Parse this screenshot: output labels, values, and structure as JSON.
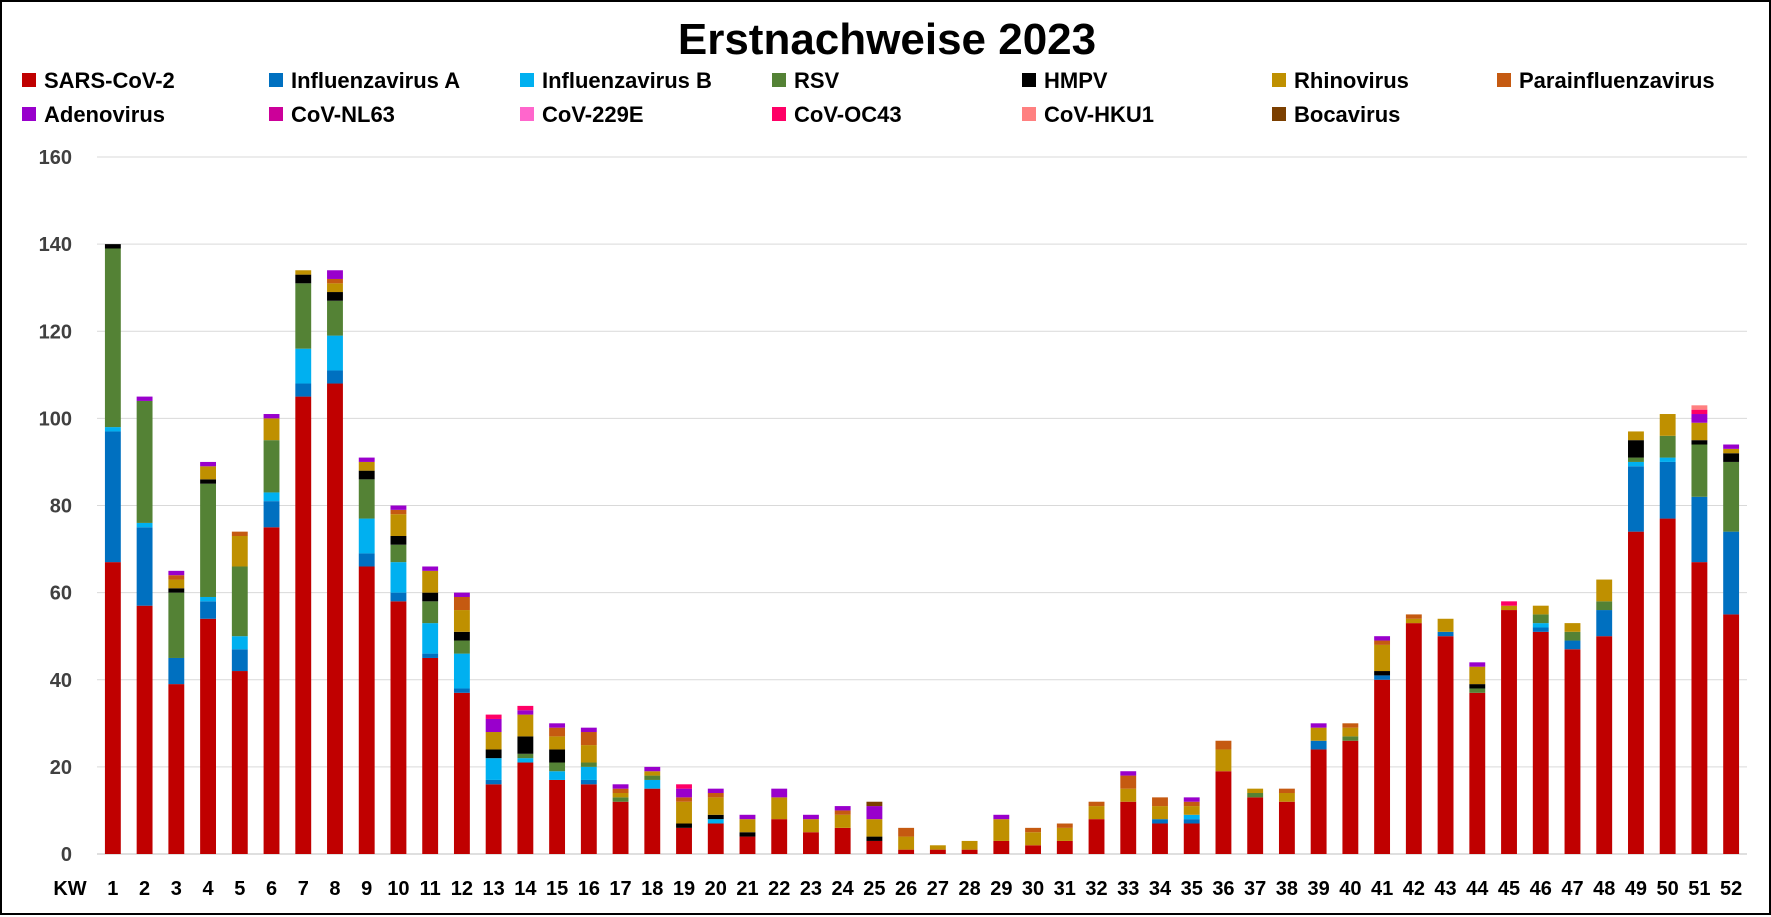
{
  "chart_data": {
    "type": "bar",
    "stacked": true,
    "title": "Erstnachweise 2023",
    "xlabel": "KW",
    "ylabel": "",
    "ylim": [
      0,
      160
    ],
    "yticks": [
      0,
      20,
      40,
      60,
      80,
      100,
      120,
      140,
      160
    ],
    "grid": true,
    "legend_position": "top",
    "categories": [
      "1",
      "2",
      "3",
      "4",
      "5",
      "6",
      "7",
      "8",
      "9",
      "10",
      "11",
      "12",
      "13",
      "14",
      "15",
      "16",
      "17",
      "18",
      "19",
      "20",
      "21",
      "22",
      "23",
      "24",
      "25",
      "26",
      "27",
      "28",
      "29",
      "30",
      "31",
      "32",
      "33",
      "34",
      "35",
      "36",
      "37",
      "38",
      "39",
      "40",
      "41",
      "42",
      "43",
      "44",
      "45",
      "46",
      "47",
      "48",
      "49",
      "50",
      "51",
      "52"
    ],
    "series": [
      {
        "name": "SARS-CoV-2",
        "color": "#C00000",
        "values": [
          67,
          57,
          39,
          54,
          42,
          75,
          105,
          108,
          66,
          58,
          45,
          37,
          16,
          21,
          17,
          16,
          12,
          15,
          6,
          7,
          4,
          8,
          5,
          6,
          3,
          1,
          1,
          1,
          3,
          2,
          3,
          8,
          12,
          7,
          7,
          19,
          13,
          12,
          24,
          26,
          40,
          53,
          50,
          37,
          56,
          51,
          47,
          50,
          74,
          77,
          67,
          55
        ]
      },
      {
        "name": "Influenzavirus A",
        "color": "#0070C0",
        "values": [
          30,
          18,
          6,
          4,
          5,
          6,
          3,
          3,
          3,
          2,
          1,
          1,
          1,
          0,
          0,
          1,
          0,
          0,
          0,
          0,
          0,
          0,
          0,
          0,
          0,
          0,
          0,
          0,
          0,
          0,
          0,
          0,
          0,
          1,
          1,
          0,
          0,
          0,
          2,
          0,
          1,
          0,
          1,
          0,
          0,
          1,
          2,
          6,
          15,
          13,
          15,
          19
        ]
      },
      {
        "name": "Influenzavirus B",
        "color": "#00B0F0",
        "values": [
          1,
          1,
          0,
          1,
          3,
          2,
          8,
          8,
          8,
          7,
          7,
          8,
          5,
          1,
          2,
          3,
          0,
          2,
          0,
          1,
          0,
          0,
          0,
          0,
          0,
          0,
          0,
          0,
          0,
          0,
          0,
          0,
          0,
          0,
          1,
          0,
          0,
          0,
          0,
          0,
          0,
          0,
          0,
          0,
          0,
          1,
          0,
          0,
          1,
          1,
          0,
          0
        ]
      },
      {
        "name": "RSV",
        "color": "#548235",
        "values": [
          41,
          28,
          15,
          26,
          16,
          12,
          15,
          8,
          9,
          4,
          5,
          3,
          0,
          1,
          2,
          1,
          1,
          1,
          0,
          0,
          0,
          0,
          0,
          0,
          0,
          0,
          0,
          0,
          0,
          0,
          0,
          0,
          0,
          0,
          0,
          0,
          1,
          0,
          0,
          1,
          0,
          0,
          0,
          1,
          0,
          2,
          2,
          2,
          1,
          5,
          12,
          16
        ]
      },
      {
        "name": "HMPV",
        "color": "#000000",
        "values": [
          1,
          0,
          1,
          1,
          0,
          0,
          2,
          2,
          2,
          2,
          2,
          2,
          2,
          4,
          3,
          0,
          0,
          0,
          1,
          1,
          1,
          0,
          0,
          0,
          1,
          0,
          0,
          0,
          0,
          0,
          0,
          0,
          0,
          0,
          0,
          0,
          0,
          0,
          0,
          0,
          1,
          0,
          0,
          1,
          0,
          0,
          0,
          0,
          4,
          0,
          1,
          2
        ]
      },
      {
        "name": "Rhinovirus",
        "color": "#BF9000",
        "values": [
          0,
          0,
          2,
          3,
          7,
          5,
          1,
          2,
          2,
          5,
          5,
          5,
          4,
          5,
          3,
          4,
          1,
          1,
          5,
          4,
          3,
          5,
          3,
          3,
          4,
          3,
          1,
          2,
          5,
          3,
          3,
          3,
          3,
          3,
          2,
          5,
          1,
          2,
          3,
          2,
          6,
          1,
          3,
          4,
          1,
          2,
          2,
          5,
          2,
          5,
          4,
          1
        ]
      },
      {
        "name": "Parainfluenzavirus",
        "color": "#C55A11",
        "values": [
          0,
          0,
          1,
          0,
          1,
          0,
          0,
          1,
          0,
          1,
          0,
          3,
          0,
          0,
          2,
          3,
          1,
          0,
          1,
          1,
          0,
          0,
          0,
          1,
          0,
          2,
          0,
          0,
          0,
          1,
          1,
          1,
          3,
          2,
          1,
          2,
          0,
          1,
          0,
          1,
          1,
          1,
          0,
          0,
          0,
          0,
          0,
          0,
          0,
          0,
          0,
          0
        ]
      },
      {
        "name": "Adenovirus",
        "color": "#9900CC",
        "values": [
          0,
          1,
          1,
          1,
          0,
          1,
          0,
          2,
          1,
          1,
          1,
          1,
          3,
          1,
          1,
          1,
          1,
          1,
          2,
          1,
          1,
          2,
          1,
          1,
          3,
          0,
          0,
          0,
          1,
          0,
          0,
          0,
          1,
          0,
          1,
          0,
          0,
          0,
          1,
          0,
          1,
          0,
          0,
          1,
          0,
          0,
          0,
          0,
          0,
          0,
          2,
          1
        ]
      },
      {
        "name": "CoV-NL63",
        "color": "#CC0099",
        "values": [
          0,
          0,
          0,
          0,
          0,
          0,
          0,
          0,
          0,
          0,
          0,
          0,
          0,
          0,
          0,
          0,
          0,
          0,
          0,
          0,
          0,
          0,
          0,
          0,
          0,
          0,
          0,
          0,
          0,
          0,
          0,
          0,
          0,
          0,
          0,
          0,
          0,
          0,
          0,
          0,
          0,
          0,
          0,
          0,
          0,
          0,
          0,
          0,
          0,
          0,
          0,
          0
        ]
      },
      {
        "name": "CoV-229E",
        "color": "#FF66CC",
        "values": [
          0,
          0,
          0,
          0,
          0,
          0,
          0,
          0,
          0,
          0,
          0,
          0,
          0,
          0,
          0,
          0,
          0,
          0,
          0,
          0,
          0,
          0,
          0,
          0,
          0,
          0,
          0,
          0,
          0,
          0,
          0,
          0,
          0,
          0,
          0,
          0,
          0,
          0,
          0,
          0,
          0,
          0,
          0,
          0,
          0,
          0,
          0,
          0,
          0,
          0,
          0,
          0
        ]
      },
      {
        "name": "CoV-OC43",
        "color": "#FF0066",
        "values": [
          0,
          0,
          0,
          0,
          0,
          0,
          0,
          0,
          0,
          0,
          0,
          0,
          1,
          1,
          0,
          0,
          0,
          0,
          1,
          0,
          0,
          0,
          0,
          0,
          0,
          0,
          0,
          0,
          0,
          0,
          0,
          0,
          0,
          0,
          0,
          0,
          0,
          0,
          0,
          0,
          0,
          0,
          0,
          0,
          1,
          0,
          0,
          0,
          0,
          0,
          1,
          0
        ]
      },
      {
        "name": "CoV-HKU1",
        "color": "#FF8080",
        "values": [
          0,
          0,
          0,
          0,
          0,
          0,
          0,
          0,
          0,
          0,
          0,
          0,
          0,
          0,
          0,
          0,
          0,
          0,
          0,
          0,
          0,
          0,
          0,
          0,
          0,
          0,
          0,
          0,
          0,
          0,
          0,
          0,
          0,
          0,
          0,
          0,
          0,
          0,
          0,
          0,
          0,
          0,
          0,
          0,
          0,
          0,
          0,
          0,
          0,
          0,
          1,
          0
        ]
      },
      {
        "name": "Bocavirus",
        "color": "#7B3F00",
        "values": [
          0,
          0,
          0,
          0,
          0,
          0,
          0,
          0,
          0,
          0,
          0,
          0,
          0,
          0,
          0,
          0,
          0,
          0,
          0,
          0,
          0,
          0,
          0,
          0,
          1,
          0,
          0,
          0,
          0,
          0,
          0,
          0,
          0,
          0,
          0,
          0,
          0,
          0,
          0,
          0,
          0,
          0,
          0,
          0,
          0,
          0,
          0,
          0,
          0,
          0,
          0,
          0
        ]
      }
    ]
  }
}
